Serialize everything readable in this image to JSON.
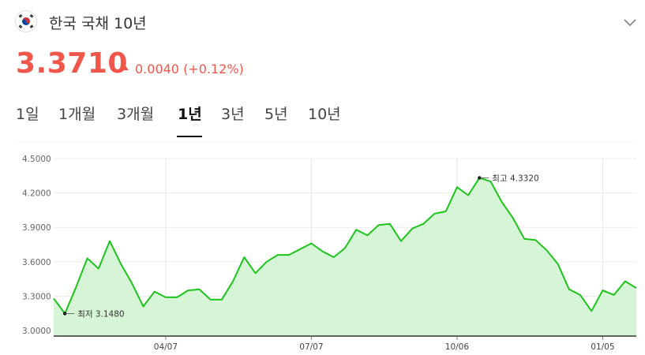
{
  "header": {
    "title": "한국 국채 10년",
    "flag_icon": "south-korea-flag-icon",
    "expand_icon": "chevron-down-icon"
  },
  "quote": {
    "price": "3.3710",
    "direction": "up",
    "change": "0.0040",
    "change_pct": "(+0.12%)",
    "color": "#f1564a"
  },
  "tabs": [
    {
      "label": "1일"
    },
    {
      "label": "1개월"
    },
    {
      "label": "3개월"
    },
    {
      "label": "1년",
      "active": true
    },
    {
      "label": "3년"
    },
    {
      "label": "5년"
    },
    {
      "label": "10년"
    }
  ],
  "chart_data": {
    "type": "area",
    "line_color": "#1cc41c",
    "fill_color": "#d6f5d6",
    "ylim": [
      2.95,
      4.5
    ],
    "y_ticks": [
      "4.5000",
      "4.2000",
      "3.9000",
      "3.6000",
      "3.3000",
      "3.0000"
    ],
    "x_tick_labels": [
      "04/07",
      "07/07",
      "10/06",
      "01/05"
    ],
    "x_tick_index": [
      10,
      23,
      36,
      49
    ],
    "grid": true,
    "values": [
      3.28,
      3.148,
      3.38,
      3.63,
      3.54,
      3.78,
      3.58,
      3.41,
      3.21,
      3.34,
      3.29,
      3.29,
      3.35,
      3.36,
      3.27,
      3.27,
      3.43,
      3.64,
      3.5,
      3.6,
      3.66,
      3.66,
      3.71,
      3.76,
      3.69,
      3.64,
      3.72,
      3.88,
      3.83,
      3.92,
      3.93,
      3.78,
      3.89,
      3.93,
      4.02,
      4.04,
      4.25,
      4.18,
      4.332,
      4.3,
      4.12,
      3.98,
      3.8,
      3.79,
      3.7,
      3.58,
      3.36,
      3.31,
      3.17,
      3.35,
      3.31,
      3.43,
      3.371
    ],
    "annotations": [
      {
        "label": "최저",
        "value": "3.1480",
        "index": 1
      },
      {
        "label": "최고",
        "value": "4.3320",
        "index": 38
      }
    ]
  }
}
